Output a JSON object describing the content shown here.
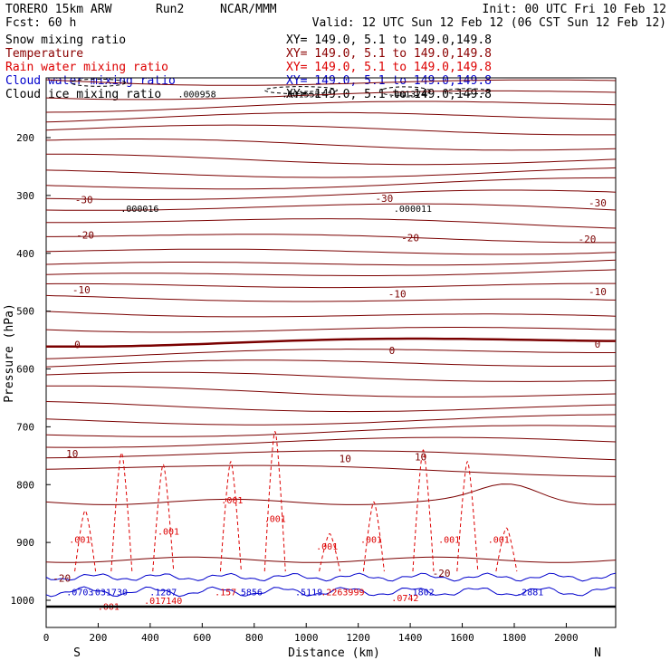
{
  "header": {
    "model": "TORERO   15km ARW",
    "run": "Run2",
    "org": "NCAR/MMM",
    "init": "Init: 00 UTC Fri 10 Feb 12",
    "fcst": "Fcst:   60 h",
    "valid": "Valid: 12 UTC Sun 12 Feb 12 (06 CST Sun 12 Feb 12)"
  },
  "legend": [
    {
      "label": "Snow mixing ratio",
      "xy": "XY= 149.0,  5.1 to 149.0,149.8",
      "color": "#000000"
    },
    {
      "label": "Temperature",
      "xy": "XY= 149.0,  5.1 to 149.0,149.8",
      "color": "#8b0000"
    },
    {
      "label": "Rain water mixing ratio",
      "xy": "XY= 149.0,  5.1 to 149.0,149.8",
      "color": "#dd0000"
    },
    {
      "label": "Cloud water mixing ratio",
      "xy": "XY= 149.0,  5.1 to 149.0,149.8",
      "color": "#0000cc"
    },
    {
      "label": "Cloud ice mixing ratio",
      "xy": "XY= 149.0,  5.1 to 149.0,149.8",
      "color": "#000000"
    }
  ],
  "chart_data": {
    "type": "line",
    "xlabel": "Distance (km)",
    "ylabel": "Pressure (hPa)",
    "xlim": [
      0,
      2190
    ],
    "ylim": [
      1050,
      80
    ],
    "x_ticks": [
      0,
      200,
      400,
      600,
      800,
      1000,
      1200,
      1400,
      1600,
      1800,
      2000
    ],
    "y_ticks": [
      200,
      300,
      400,
      500,
      600,
      700,
      800,
      900,
      1000
    ],
    "direction_labels": {
      "left": "S",
      "right": "N"
    },
    "temperature_labels": [
      {
        "text": "-30",
        "x": 145,
        "p": 307
      },
      {
        "text": "-30",
        "x": 1300,
        "p": 305
      },
      {
        "text": "-30",
        "x": 2120,
        "p": 313
      },
      {
        "text": "-20",
        "x": 150,
        "p": 368
      },
      {
        "text": "-20",
        "x": 1400,
        "p": 373
      },
      {
        "text": "-20",
        "x": 2080,
        "p": 375
      },
      {
        "text": "-10",
        "x": 135,
        "p": 463
      },
      {
        "text": "-10",
        "x": 1350,
        "p": 470
      },
      {
        "text": "-10",
        "x": 2120,
        "p": 466
      },
      {
        "text": "0",
        "x": 120,
        "p": 558
      },
      {
        "text": "0",
        "x": 1330,
        "p": 568
      },
      {
        "text": "0",
        "x": 2120,
        "p": 557
      },
      {
        "text": "10",
        "x": 100,
        "p": 746
      },
      {
        "text": "10",
        "x": 1150,
        "p": 755
      },
      {
        "text": "10",
        "x": 1440,
        "p": 752
      },
      {
        "text": "-20",
        "x": 60,
        "p": 962
      },
      {
        "text": "-20",
        "x": 1520,
        "p": 953
      }
    ],
    "maxima_labels": [
      {
        "text": ".000958",
        "x": 580,
        "p": 124,
        "color": "#000000"
      },
      {
        "text": ".001552",
        "x": 980,
        "p": 124,
        "color": "#000000"
      },
      {
        "text": ".001374",
        "x": 1390,
        "p": 124,
        "color": "#000000"
      },
      {
        "text": ".000016",
        "x": 360,
        "p": 322,
        "color": "#000000"
      },
      {
        "text": ".000011",
        "x": 1410,
        "p": 322,
        "color": "#000000"
      },
      {
        "text": ".001",
        "x": 715,
        "p": 826,
        "color": "#dd0000"
      },
      {
        "text": ".001",
        "x": 880,
        "p": 858,
        "color": "#dd0000"
      },
      {
        "text": ".001",
        "x": 470,
        "p": 880,
        "color": "#dd0000"
      },
      {
        "text": ".001",
        "x": 130,
        "p": 894,
        "color": "#dd0000"
      },
      {
        "text": ".001",
        "x": 1080,
        "p": 906,
        "color": "#dd0000"
      },
      {
        "text": ".001",
        "x": 1250,
        "p": 894,
        "color": "#dd0000"
      },
      {
        "text": ".001",
        "x": 1550,
        "p": 894,
        "color": "#dd0000"
      },
      {
        "text": ".001",
        "x": 1740,
        "p": 894,
        "color": "#dd0000"
      },
      {
        "text": ".0703",
        "x": 130,
        "p": 985,
        "color": "#0000cc"
      },
      {
        "text": ".031730",
        "x": 240,
        "p": 985,
        "color": "#0000cc"
      },
      {
        "text": ".1287",
        "x": 450,
        "p": 985,
        "color": "#0000cc"
      },
      {
        "text": ".017140",
        "x": 450,
        "p": 1000,
        "color": "#dd0000"
      },
      {
        "text": ".157",
        "x": 690,
        "p": 985,
        "color": "#dd0000"
      },
      {
        "text": "5856",
        "x": 790,
        "p": 985,
        "color": "#0000cc"
      },
      {
        "text": ".5119",
        "x": 1010,
        "p": 985,
        "color": "#0000cc"
      },
      {
        "text": ".2263999",
        "x": 1140,
        "p": 985,
        "color": "#dd0000"
      },
      {
        "text": ".1802",
        "x": 1440,
        "p": 985,
        "color": "#0000cc"
      },
      {
        "text": ".0742",
        "x": 1380,
        "p": 995,
        "color": "#dd0000"
      },
      {
        "text": ".2881",
        "x": 1860,
        "p": 985,
        "color": "#0000cc"
      },
      {
        "text": ".001",
        "x": 240,
        "p": 1010,
        "color": "#dd0000"
      }
    ]
  }
}
